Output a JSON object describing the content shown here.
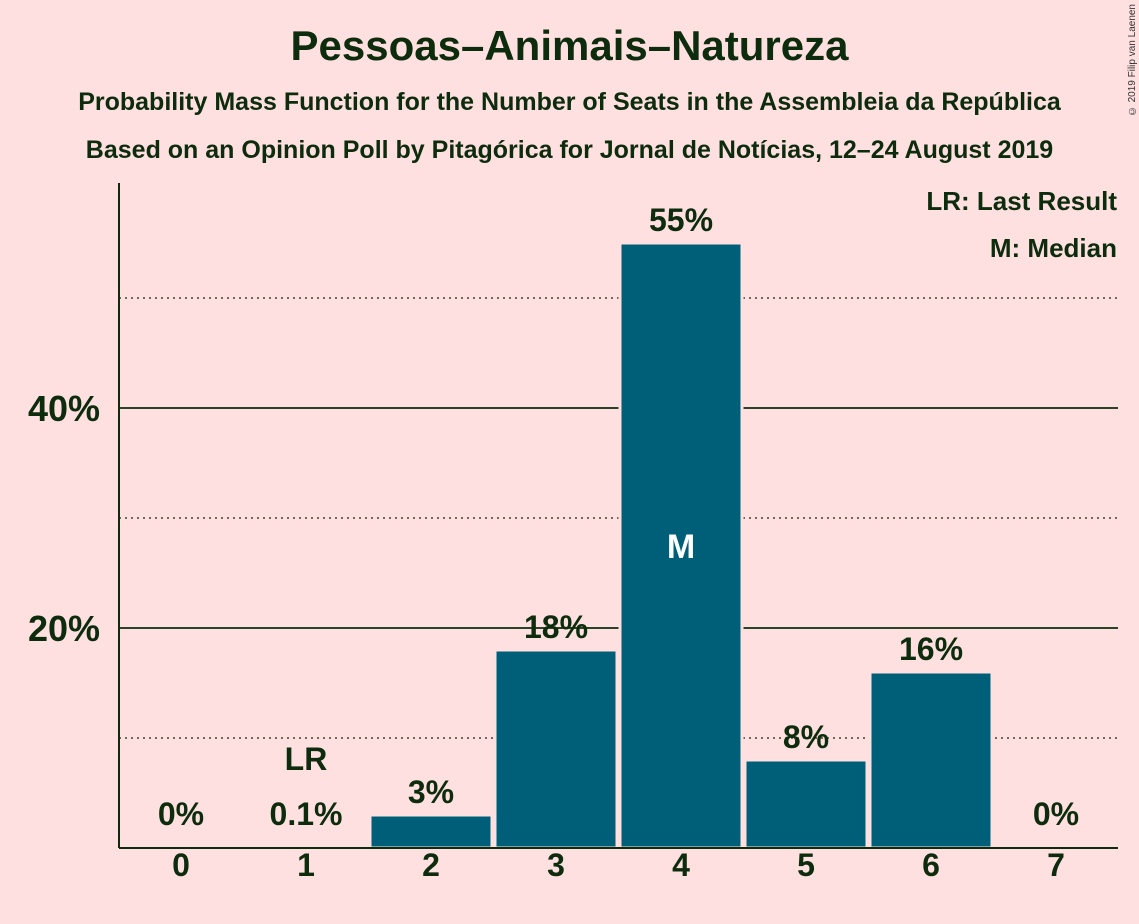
{
  "title": "Pessoas–Animais–Natureza",
  "subtitle1": "Probability Mass Function for the Number of Seats in the Assembleia da República",
  "subtitle2": "Based on an Opinion Poll by Pitagórica for Jornal de Notícias, 12–24 August 2019",
  "copyright": "© 2019 Filip van Laenen",
  "legend": {
    "last_result": "LR: Last Result",
    "median": "M: Median"
  },
  "colors": {
    "background": "#ffe0e0",
    "bar": "#005f78",
    "text": "#0d2b0d"
  },
  "chart_data": {
    "type": "bar",
    "categories": [
      "0",
      "1",
      "2",
      "3",
      "4",
      "5",
      "6",
      "7"
    ],
    "values": [
      0,
      0.1,
      3,
      18,
      55,
      8,
      16,
      0
    ],
    "value_labels": [
      "0%",
      "0.1%",
      "3%",
      "18%",
      "55%",
      "8%",
      "16%",
      "0%"
    ],
    "y_ticks": [
      {
        "value": 20,
        "label": "20%"
      },
      {
        "value": 40,
        "label": "40%"
      }
    ],
    "minor_gridlines": [
      10,
      30,
      50
    ],
    "ylim": [
      0,
      60
    ],
    "last_result": {
      "category": "1",
      "label": "LR"
    },
    "median": {
      "category": "4",
      "label": "M"
    },
    "legend_position": "top-right"
  }
}
